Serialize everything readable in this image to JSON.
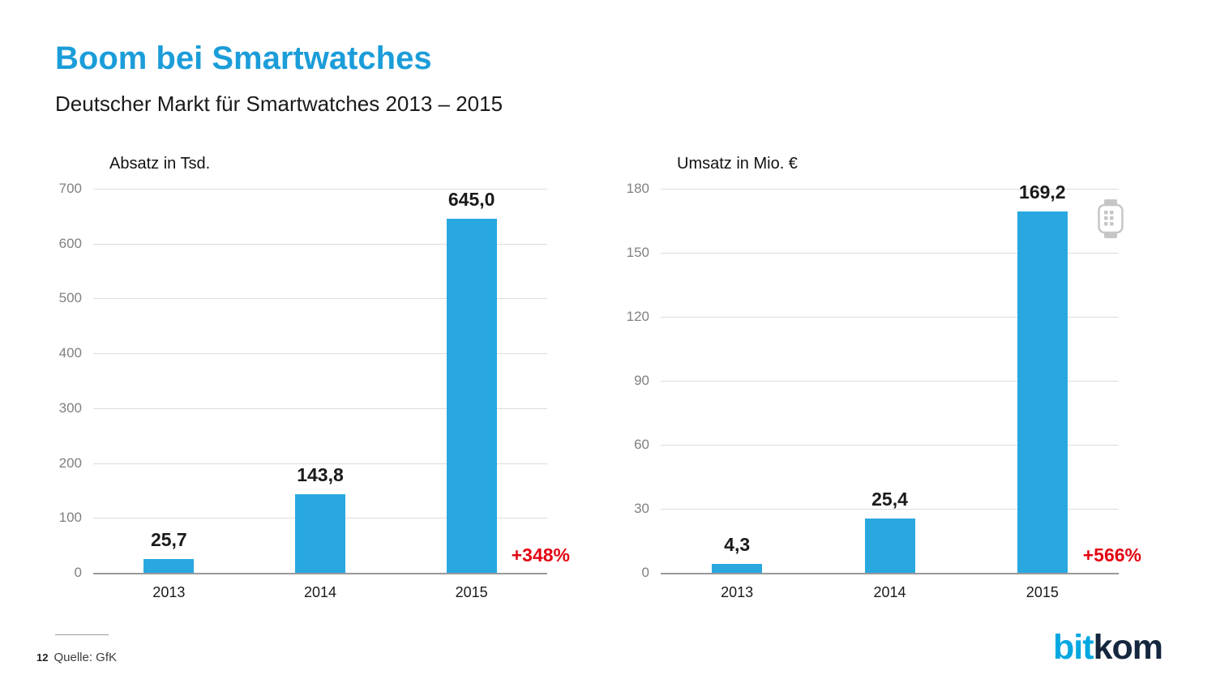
{
  "slide": {
    "title": "Boom bei Smartwatches",
    "subtitle": "Deutscher Markt für Smartwatches 2013 – 2015"
  },
  "footer": {
    "page_number": "12",
    "source": "Quelle: GfK"
  },
  "logo": {
    "bit": "bit",
    "kom": "kom"
  },
  "icons": {
    "watch": "smartwatch-outline-icon"
  },
  "colors": {
    "title_blue": "#1b9dd9",
    "bar_blue": "#29a8e0",
    "annotation_red": "#e30613",
    "gridline_gray": "#dcdcdc",
    "axis_label_gray": "#808080",
    "logo_blue": "#00a7e1",
    "logo_dark": "#14273f"
  },
  "chart_data": [
    {
      "type": "bar",
      "title": "Absatz in Tsd.",
      "categories": [
        "2013",
        "2014",
        "2015"
      ],
      "values": [
        25.7,
        143.8,
        645.0
      ],
      "value_labels": [
        "25,7",
        "143,8",
        "645,0"
      ],
      "ylim": [
        0,
        700
      ],
      "yticks": [
        0,
        100,
        200,
        300,
        400,
        500,
        600,
        700
      ],
      "annotation": "+348%",
      "grid": true,
      "legend": "none",
      "bar_color": "#29a8e0"
    },
    {
      "type": "bar",
      "title": "Umsatz in Mio. €",
      "categories": [
        "2013",
        "2014",
        "2015"
      ],
      "values": [
        4.3,
        25.4,
        169.2
      ],
      "value_labels": [
        "4,3",
        "25,4",
        "169,2"
      ],
      "ylim": [
        0,
        180
      ],
      "yticks": [
        0,
        30,
        60,
        90,
        120,
        150,
        180
      ],
      "annotation": "+566%",
      "grid": true,
      "legend": "none",
      "bar_color": "#29a8e0"
    }
  ]
}
